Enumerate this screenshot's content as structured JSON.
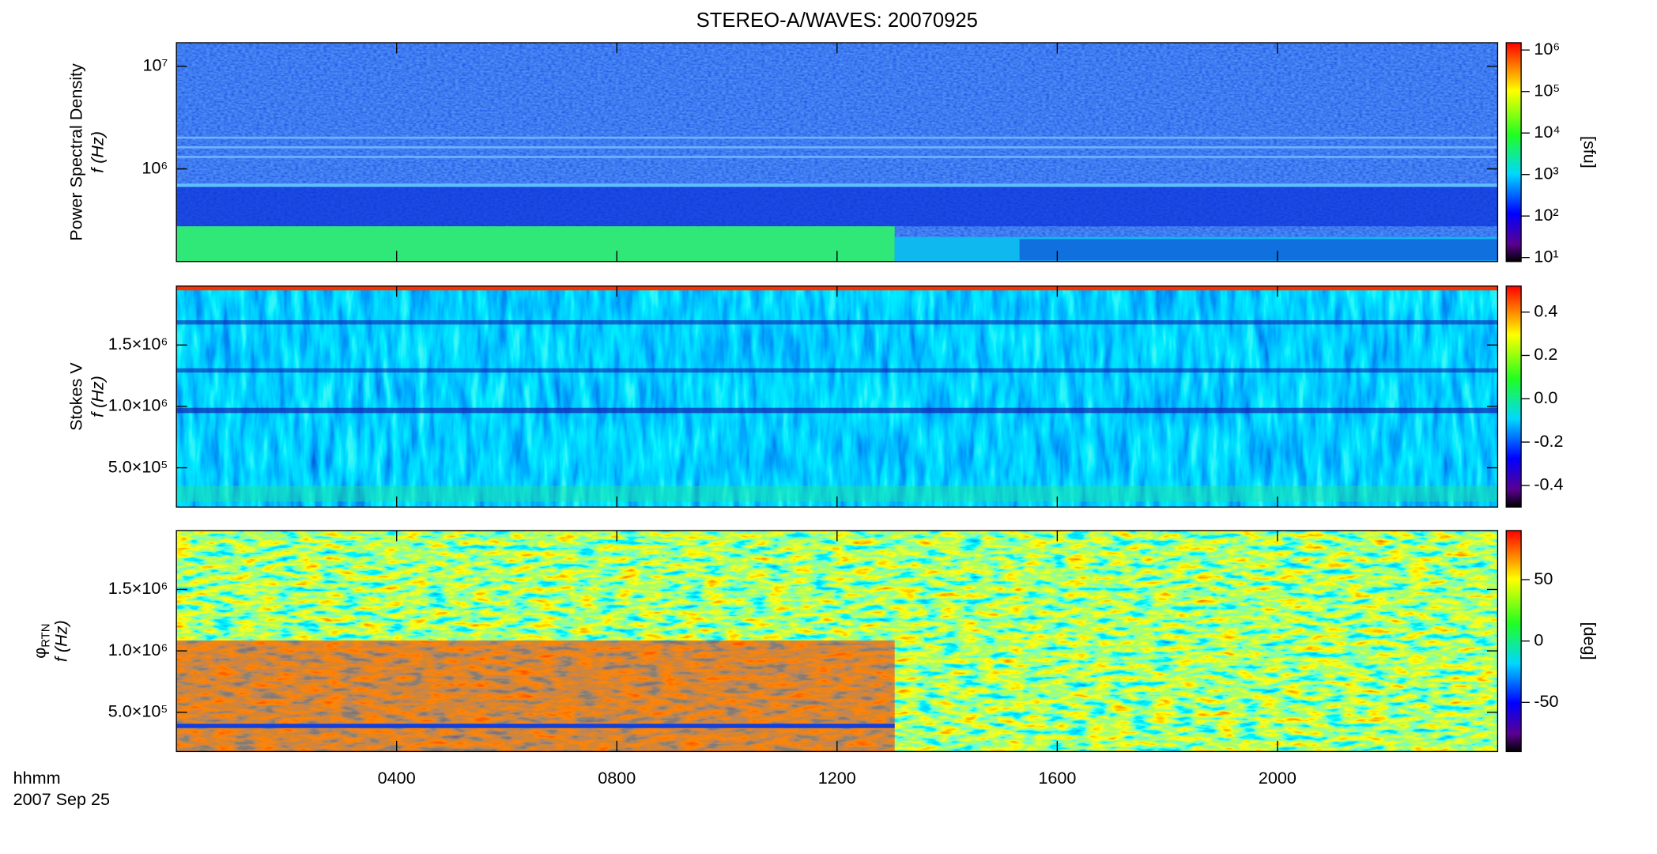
{
  "chart_data": [
    {
      "type": "heatmap",
      "title": "STEREO-A/WAVES: 20070925",
      "ylabel": "Power Spectral Density",
      "ylabel2": "f (Hz)",
      "yscale": "log",
      "ylim": [
        125000,
        17000000
      ],
      "yticks": [
        {
          "value": 1000000,
          "label": "10⁶"
        },
        {
          "value": 10000000,
          "label": "10⁷"
        }
      ],
      "cscale": "log",
      "clim": [
        8,
        1500000
      ],
      "cticks": [
        {
          "value": 10,
          "label": "10¹"
        },
        {
          "value": 100,
          "label": "10²"
        },
        {
          "value": 1000,
          "label": "10³"
        },
        {
          "value": 10000,
          "label": "10⁴"
        },
        {
          "value": 100000,
          "label": "10⁵"
        },
        {
          "value": 1000000,
          "label": "10⁶"
        }
      ],
      "clabel": "[sfu]"
    },
    {
      "type": "heatmap",
      "ylabel": "Stokes V",
      "ylabel2": "f (Hz)",
      "yscale": "linear",
      "ylim": [
        180000,
        1980000
      ],
      "yticks": [
        {
          "value": 500000,
          "label": "5.0×10⁵"
        },
        {
          "value": 1000000,
          "label": "1.0×10⁶"
        },
        {
          "value": 1500000,
          "label": "1.5×10⁶"
        }
      ],
      "cscale": "linear",
      "clim": [
        -0.5,
        0.52
      ],
      "cticks": [
        -0.4,
        -0.2,
        {
          "value": 0,
          "label": "0.0"
        },
        0.2,
        0.4
      ]
    },
    {
      "type": "heatmap",
      "ylabel": "φ",
      "ylabel_subscript": "RTN",
      "ylabel2": "f (Hz)",
      "yscale": "linear",
      "ylim": [
        180000,
        1980000
      ],
      "yticks": [
        {
          "value": 500000,
          "label": "5.0×10⁵"
        },
        {
          "value": 1000000,
          "label": "1.0×10⁶"
        },
        {
          "value": 1500000,
          "label": "1.5×10⁶"
        }
      ],
      "cscale": "linear",
      "clim": [
        -90,
        90
      ],
      "cticks": [
        -50,
        0,
        50
      ],
      "clabel": "[deg]",
      "xlim": [
        0,
        24
      ],
      "xticks": [
        {
          "value": 4,
          "label": "0400"
        },
        {
          "value": 8,
          "label": "0800"
        },
        {
          "value": 12,
          "label": "1200"
        },
        {
          "value": 16,
          "label": "1600"
        },
        {
          "value": 20,
          "label": "2000"
        }
      ],
      "xlabel": "hhmm",
      "date_label": "2007 Sep 25"
    }
  ]
}
